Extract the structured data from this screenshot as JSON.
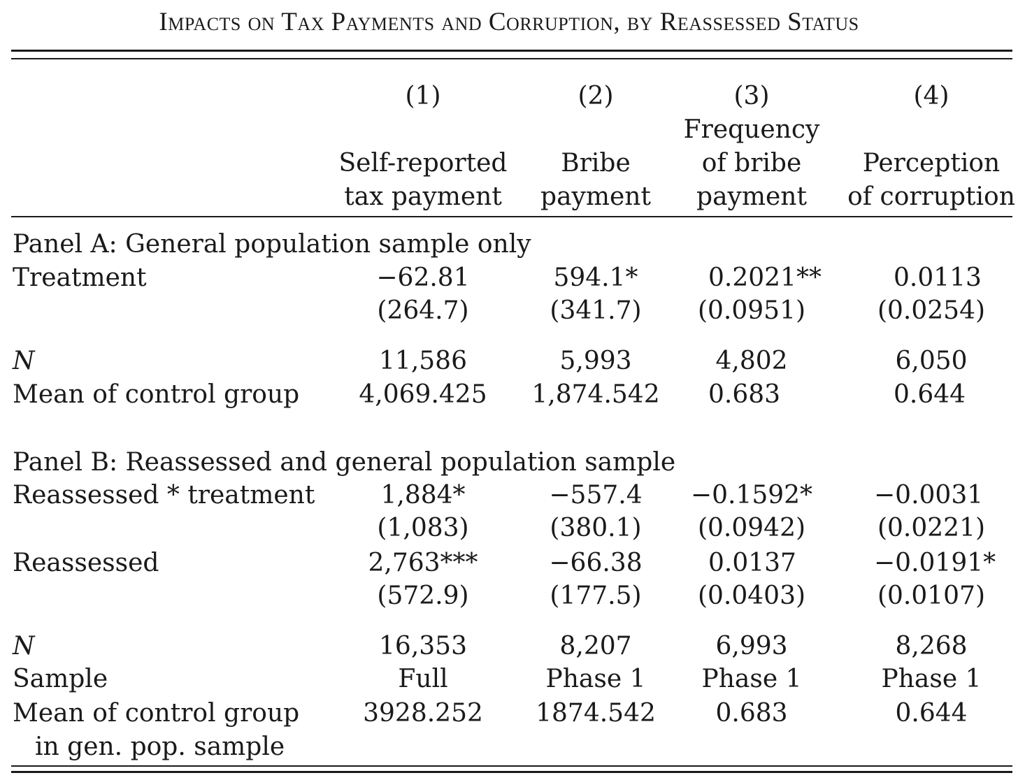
{
  "title": "Impacts on Tax Payments and Corruption, by Reassessed Status",
  "columns": [
    {
      "number": "(1)",
      "head": [
        "Self-reported",
        "tax payment"
      ]
    },
    {
      "number": "(2)",
      "head": [
        "Bribe",
        "payment"
      ]
    },
    {
      "number": "(3)",
      "head": [
        "Frequency",
        "of bribe",
        "payment"
      ]
    },
    {
      "number": "(4)",
      "head": [
        "Perception",
        "of corruption"
      ]
    }
  ],
  "panel_a": {
    "title": "Panel A: General population sample only",
    "treatment": {
      "label": "Treatment",
      "coef": [
        "−62.81",
        "594.1*",
        "0.2021**",
        "0.0113"
      ],
      "se": [
        "(264.7)",
        "(341.7)",
        "(0.0951)",
        "(0.0254)"
      ]
    },
    "n": {
      "label": "N",
      "values": [
        "11,586",
        "5,993",
        "4,802",
        "6,050"
      ]
    },
    "mean": {
      "label": "Mean of control group",
      "values": [
        "4,069.425",
        "1,874.542",
        "0.683",
        "0.644"
      ]
    }
  },
  "panel_b": {
    "title": "Panel B: Reassessed and general population sample",
    "interaction": {
      "label": "Reassessed * treatment",
      "coef": [
        "1,884*",
        "−557.4",
        "−0.1592*",
        "−0.0031"
      ],
      "se": [
        "(1,083)",
        "(380.1)",
        "(0.0942)",
        "(0.0221)"
      ]
    },
    "reassessed": {
      "label": "Reassessed",
      "coef": [
        "2,763***",
        "−66.38",
        "0.0137",
        "−0.0191*"
      ],
      "se": [
        "(572.9)",
        "(177.5)",
        "(0.0403)",
        "(0.0107)"
      ]
    },
    "n": {
      "label": "N",
      "values": [
        "16,353",
        "8,207",
        "6,993",
        "8,268"
      ]
    },
    "sample": {
      "label": "Sample",
      "values": [
        "Full",
        "Phase 1",
        "Phase 1",
        "Phase 1"
      ]
    },
    "mean": {
      "label": "Mean of control group",
      "label2": "in gen. pop. sample",
      "values": [
        "3928.252",
        "1874.542",
        "0.683",
        "0.644"
      ]
    }
  }
}
